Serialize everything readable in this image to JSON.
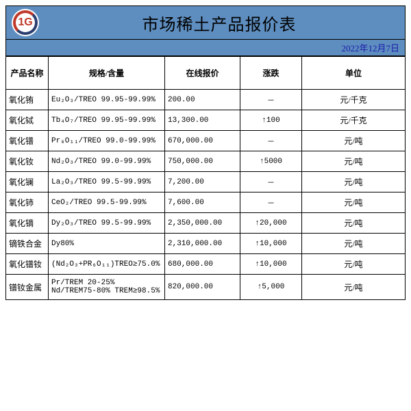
{
  "header": {
    "logo_text": "1G",
    "title": "市场稀土产品报价表",
    "date": "2022年12月7日"
  },
  "columns": [
    "产品名称",
    "规格/含量",
    "在线报价",
    "涨跌",
    "单位"
  ],
  "rows": [
    {
      "name": "氧化铕",
      "spec": "Eu₂O₃/TREO 99.95-99.99%",
      "price": "200.00",
      "change": "－",
      "up": false,
      "unit": "元/千克"
    },
    {
      "name": "氧化铽",
      "spec": "Tb₄O₇/TREO 99.95-99.99%",
      "price": "13,300.00",
      "change": "100",
      "up": true,
      "unit": "元/千克"
    },
    {
      "name": "氧化镨",
      "spec": "Pr₆O₁₁/TREO 99.0-99.99%",
      "price": "670,000.00",
      "change": "－",
      "up": false,
      "unit": "元/吨"
    },
    {
      "name": "氧化钕",
      "spec": "Nd₂O₃/TREO 99.0-99.99%",
      "price": "750,000.00",
      "change": "5000",
      "up": true,
      "unit": "元/吨"
    },
    {
      "name": "氧化镧",
      "spec": "La₂O₃/TREO 99.5-99.99%",
      "price": "7,200.00",
      "change": "－",
      "up": false,
      "unit": "元/吨"
    },
    {
      "name": "氧化铈",
      "spec": "CeO₂/TREO 99.5-99.99%",
      "price": "7,600.00",
      "change": "－",
      "up": false,
      "unit": "元/吨"
    },
    {
      "name": "氧化镝",
      "spec": "Dy₂O₃/TREO 99.5-99.99%",
      "price": "2,350,000.00",
      "change": "20,000",
      "up": true,
      "unit": "元/吨"
    },
    {
      "name": "镝铁合金",
      "spec": "Dy80%",
      "price": "2,310,000.00",
      "change": "10,000",
      "up": true,
      "unit": "元/吨"
    },
    {
      "name": "氧化镨钕",
      "spec": "(Nd₂O₃+PR₆O₁₁)TREO≥75.0%",
      "price": "680,000.00",
      "change": "10,000",
      "up": true,
      "unit": "元/吨"
    },
    {
      "name": "镨钕金属",
      "spec": "Pr/TREM 20-25%\nNd/TREM75-80% TREM≥98.5%",
      "price": "820,000.00",
      "change": "5,000",
      "up": true,
      "unit": "元/吨"
    }
  ]
}
